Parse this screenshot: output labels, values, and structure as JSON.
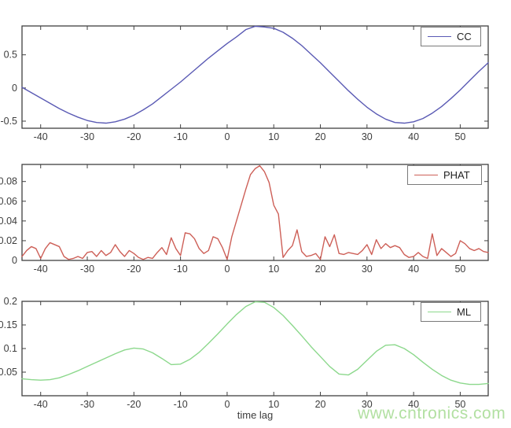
{
  "figure": {
    "background": "#ffffff",
    "xlabel": "time lag",
    "watermark": {
      "text": "www.cntronics.com",
      "color": "#b2e0a2"
    },
    "frame_color": "#404040",
    "tick_label_color": "#3d3d3d"
  },
  "chart_data": [
    {
      "type": "line",
      "title": "",
      "xlim": [
        -44,
        56
      ],
      "ylim": [
        -0.607,
        0.935
      ],
      "xticks": [
        -40,
        -30,
        -20,
        -10,
        0,
        10,
        20,
        30,
        40,
        50
      ],
      "xtick_labels": [
        "-40",
        "-30",
        "-20",
        "-10",
        "0",
        "10",
        "20",
        "30",
        "40",
        "50"
      ],
      "yticks": [
        -0.5,
        0,
        0.5
      ],
      "ytick_labels": [
        "-0.5",
        "0",
        "0.5"
      ],
      "grid": false,
      "legend_position": "top-right",
      "series": [
        {
          "name": "CC",
          "color": "#5a5ab4",
          "x_start": -44,
          "x_step": 2,
          "values": [
            0.01,
            -0.07,
            -0.15,
            -0.23,
            -0.31,
            -0.38,
            -0.44,
            -0.49,
            -0.52,
            -0.53,
            -0.51,
            -0.47,
            -0.41,
            -0.33,
            -0.24,
            -0.13,
            -0.02,
            0.09,
            0.21,
            0.33,
            0.45,
            0.56,
            0.67,
            0.77,
            0.88,
            0.93,
            0.92,
            0.9,
            0.84,
            0.75,
            0.64,
            0.51,
            0.38,
            0.24,
            0.1,
            -0.04,
            -0.17,
            -0.29,
            -0.39,
            -0.47,
            -0.52,
            -0.53,
            -0.51,
            -0.46,
            -0.38,
            -0.28,
            -0.16,
            -0.03,
            0.11,
            0.25,
            0.38
          ]
        }
      ]
    },
    {
      "type": "line",
      "title": "",
      "xlim": [
        -44,
        56
      ],
      "ylim": [
        0,
        0.0973
      ],
      "xticks": [
        -40,
        -30,
        -20,
        -10,
        0,
        10,
        20,
        30,
        40,
        50
      ],
      "xtick_labels": [
        "-40",
        "-30",
        "-20",
        "-10",
        "0",
        "10",
        "20",
        "30",
        "40",
        "50"
      ],
      "yticks": [
        0,
        0.02,
        0.04,
        0.06,
        0.08
      ],
      "ytick_labels": [
        "0",
        "0.02",
        "0.04",
        "0.06",
        "0.08"
      ],
      "grid": false,
      "legend_position": "top-right",
      "series": [
        {
          "name": "PHAT",
          "color": "#cd5f57",
          "x_start": -44,
          "x_step": 1,
          "values": [
            0.004,
            0.01,
            0.014,
            0.012,
            0.002,
            0.012,
            0.018,
            0.016,
            0.014,
            0.004,
            0.001,
            0.002,
            0.004,
            0.002,
            0.008,
            0.009,
            0.004,
            0.01,
            0.005,
            0.008,
            0.016,
            0.009,
            0.004,
            0.01,
            0.007,
            0.003,
            0.001,
            0.003,
            0.002,
            0.008,
            0.013,
            0.006,
            0.023,
            0.012,
            0.005,
            0.028,
            0.027,
            0.022,
            0.012,
            0.007,
            0.01,
            0.024,
            0.022,
            0.013,
            0.001,
            0.024,
            0.04,
            0.056,
            0.072,
            0.087,
            0.093,
            0.096,
            0.09,
            0.079,
            0.056,
            0.047,
            0.003,
            0.01,
            0.015,
            0.031,
            0.009,
            0.004,
            0.005,
            0.007,
            0.001,
            0.024,
            0.014,
            0.026,
            0.007,
            0.006,
            0.008,
            0.007,
            0.006,
            0.01,
            0.016,
            0.006,
            0.021,
            0.012,
            0.017,
            0.013,
            0.015,
            0.013,
            0.006,
            0.003,
            0.004,
            0.008,
            0.004,
            0.002,
            0.027,
            0.005,
            0.012,
            0.008,
            0.004,
            0.007,
            0.02,
            0.017,
            0.012,
            0.01,
            0.012,
            0.009,
            0.008
          ]
        }
      ]
    },
    {
      "type": "line",
      "title": "",
      "xlim": [
        -44,
        56
      ],
      "ylim": [
        0,
        0.2
      ],
      "xticks": [
        -40,
        -30,
        -20,
        -10,
        0,
        10,
        20,
        30,
        40,
        50
      ],
      "xtick_labels": [
        "-40",
        "-30",
        "-20",
        "-10",
        "0",
        "10",
        "20",
        "30",
        "40",
        "50"
      ],
      "yticks": [
        0.05,
        0.1,
        0.15,
        0.2
      ],
      "ytick_labels": [
        "0.05",
        "0.1",
        "0.15",
        "0.2"
      ],
      "grid": false,
      "legend_position": "top-right",
      "series": [
        {
          "name": "ML",
          "color": "#8cd88c",
          "x_start": -44,
          "x_step": 2,
          "values": [
            0.036,
            0.034,
            0.033,
            0.034,
            0.038,
            0.045,
            0.053,
            0.062,
            0.071,
            0.08,
            0.089,
            0.097,
            0.101,
            0.099,
            0.091,
            0.079,
            0.066,
            0.067,
            0.077,
            0.092,
            0.111,
            0.131,
            0.152,
            0.172,
            0.189,
            0.199,
            0.198,
            0.187,
            0.17,
            0.149,
            0.127,
            0.104,
            0.083,
            0.062,
            0.046,
            0.044,
            0.056,
            0.075,
            0.094,
            0.107,
            0.108,
            0.1,
            0.087,
            0.071,
            0.056,
            0.043,
            0.033,
            0.027,
            0.024,
            0.024,
            0.026
          ]
        }
      ]
    }
  ]
}
